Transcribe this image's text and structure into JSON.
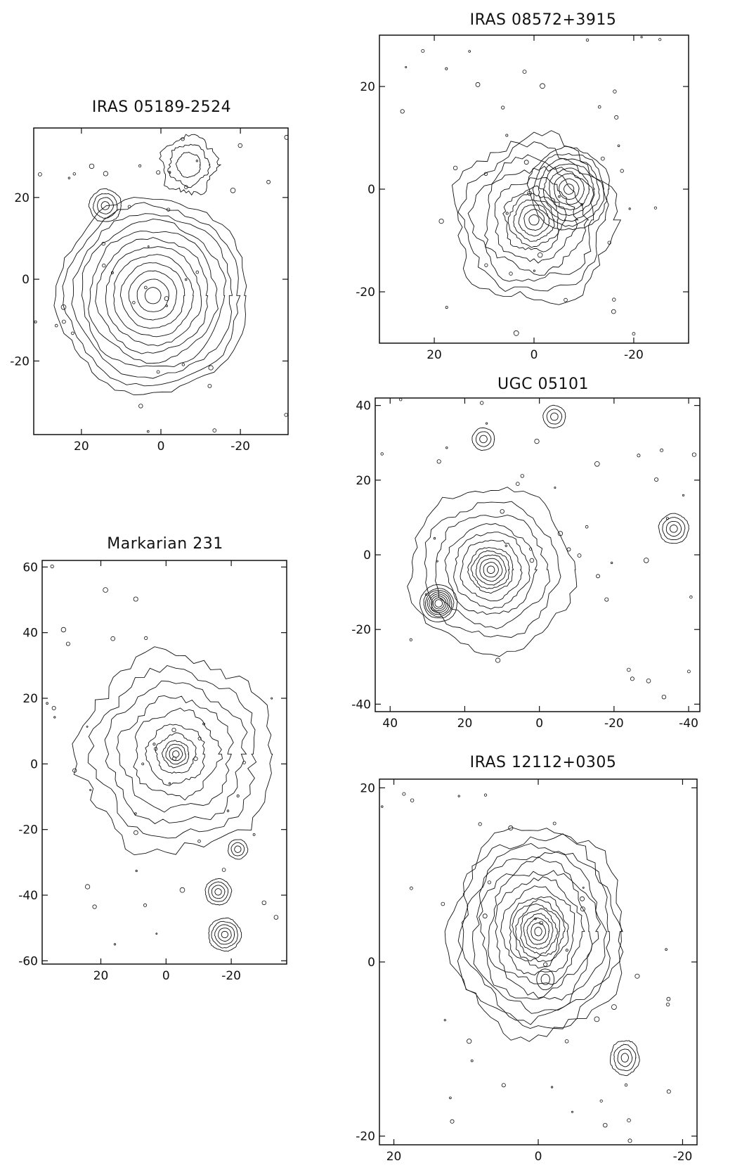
{
  "figure": {
    "panels": [
      {
        "id": "iras05189",
        "title": "IRAS 05189-2524",
        "x_ticks": [
          "20",
          "0",
          "-20"
        ],
        "y_ticks": [
          "20",
          "0",
          "-20"
        ],
        "x_tick_values": [
          20,
          0,
          -20
        ],
        "y_tick_values": [
          20,
          0,
          -20
        ],
        "xlim": [
          32,
          -32
        ],
        "ylim": [
          -38,
          37
        ],
        "features": [
          {
            "name": "nucleus",
            "cx": 2,
            "cy": -4,
            "radii": [
              2,
              4,
              6,
              8,
              10,
              12,
              14,
              16,
              18,
              20,
              22,
              24
            ],
            "jitter": 0.05
          },
          {
            "name": "companion",
            "cx": 14,
            "cy": 18,
            "radii": [
              1,
              2,
              3,
              4
            ],
            "jitter": 0.08
          },
          {
            "name": "ne-clump",
            "cx": -7,
            "cy": 28,
            "radii": [
              3,
              5,
              7
            ],
            "jitter": 0.3
          }
        ]
      },
      {
        "id": "iras08572",
        "title": "IRAS 08572+3915",
        "x_ticks": [
          "20",
          "0",
          "-20"
        ],
        "y_ticks": [
          "20",
          "0",
          "-20"
        ],
        "x_tick_values": [
          20,
          0,
          -20
        ],
        "y_tick_values": [
          20,
          0,
          -20
        ],
        "xlim": [
          31,
          -31
        ],
        "ylim": [
          -30,
          30
        ],
        "features": [
          {
            "name": "nucleus-north",
            "cx": -7,
            "cy": 0,
            "radii": [
              1,
              2,
              3,
              4,
              5,
              6,
              7,
              8
            ],
            "jitter": 0.06
          },
          {
            "name": "nucleus-south",
            "cx": 0,
            "cy": -6,
            "radii": [
              1,
              2,
              3,
              4,
              5,
              6,
              8,
              10,
              12,
              14,
              16
            ],
            "jitter": 0.12
          }
        ]
      },
      {
        "id": "ugc05101",
        "title": "UGC 05101",
        "x_ticks": [
          "40",
          "20",
          "0",
          "-20",
          "-40"
        ],
        "y_ticks": [
          "40",
          "20",
          "0",
          "-20",
          "-40"
        ],
        "x_tick_values": [
          40,
          20,
          0,
          -20,
          -40
        ],
        "y_tick_values": [
          40,
          20,
          0,
          -20,
          -40
        ],
        "xlim": [
          44,
          -43
        ],
        "ylim": [
          -42,
          42
        ],
        "features": [
          {
            "name": "nucleus",
            "cx": 13,
            "cy": -4,
            "radii": [
              1,
              2,
              3,
              4,
              5,
              6,
              8,
              10,
              12,
              15,
              18,
              22
            ],
            "jitter": 0.08
          },
          {
            "name": "bright-star",
            "cx": 27,
            "cy": -13,
            "radii": [
              1,
              1.5,
              2,
              2.5,
              3,
              3.5,
              4,
              5
            ],
            "jitter": 0.03
          },
          {
            "name": "star-east",
            "cx": -36,
            "cy": 7,
            "radii": [
              1,
              2,
              3,
              4
            ],
            "jitter": 0.06
          },
          {
            "name": "star-north",
            "cx": -4,
            "cy": 37,
            "radii": [
              1,
              2,
              3
            ],
            "jitter": 0.06
          },
          {
            "name": "star-north2",
            "cx": 15,
            "cy": 31,
            "radii": [
              1,
              2,
              3
            ],
            "jitter": 0.06
          }
        ]
      },
      {
        "id": "mrk231",
        "title": "Markarian 231",
        "x_ticks": [
          "20",
          "0",
          "-20"
        ],
        "y_ticks": [
          "60",
          "40",
          "20",
          "0",
          "-20",
          "-40",
          "-60"
        ],
        "x_tick_values": [
          20,
          0,
          -20
        ],
        "y_tick_values": [
          60,
          40,
          20,
          0,
          -20,
          -40,
          -60
        ],
        "xlim": [
          38,
          -37
        ],
        "ylim": [
          -61,
          62
        ],
        "features": [
          {
            "name": "nucleus",
            "cx": -3,
            "cy": 3,
            "radii": [
              1,
              2,
              3,
              4,
              6,
              9,
              13,
              17,
              21,
              25,
              30
            ],
            "jitter": 0.12
          },
          {
            "name": "star-sw",
            "cx": -18,
            "cy": -52,
            "radii": [
              1,
              2,
              3,
              4,
              5
            ],
            "jitter": 0.06
          },
          {
            "name": "star-s",
            "cx": -16,
            "cy": -39,
            "radii": [
              1,
              2,
              3,
              4
            ],
            "jitter": 0.06
          },
          {
            "name": "star-se",
            "cx": -22,
            "cy": -26,
            "radii": [
              1,
              2,
              3
            ],
            "jitter": 0.08
          }
        ]
      },
      {
        "id": "iras12112",
        "title": "IRAS 12112+0305",
        "x_ticks": [
          "20",
          "0",
          "-20"
        ],
        "y_ticks": [
          "20",
          "0",
          "-20"
        ],
        "x_tick_values": [
          20,
          0,
          -20
        ],
        "y_tick_values": [
          20,
          0,
          -20
        ],
        "xlim": [
          22,
          -22
        ],
        "ylim": [
          -21,
          21
        ],
        "features": [
          {
            "name": "nucleus-north",
            "cx": 0,
            "cy": 3.5,
            "radii": [
              0.5,
              1,
              1.5,
              2,
              2.5,
              3,
              3.5,
              4,
              5,
              6,
              7,
              8,
              9,
              10,
              11,
              12
            ],
            "jitter": 0.1
          },
          {
            "name": "nucleus-south",
            "cx": -1,
            "cy": -2,
            "radii": [
              0.6,
              1.2
            ],
            "jitter": 0.05
          },
          {
            "name": "companion-se",
            "cx": -12,
            "cy": -11,
            "radii": [
              0.5,
              1,
              1.5,
              2
            ],
            "jitter": 0.1
          }
        ]
      }
    ]
  }
}
